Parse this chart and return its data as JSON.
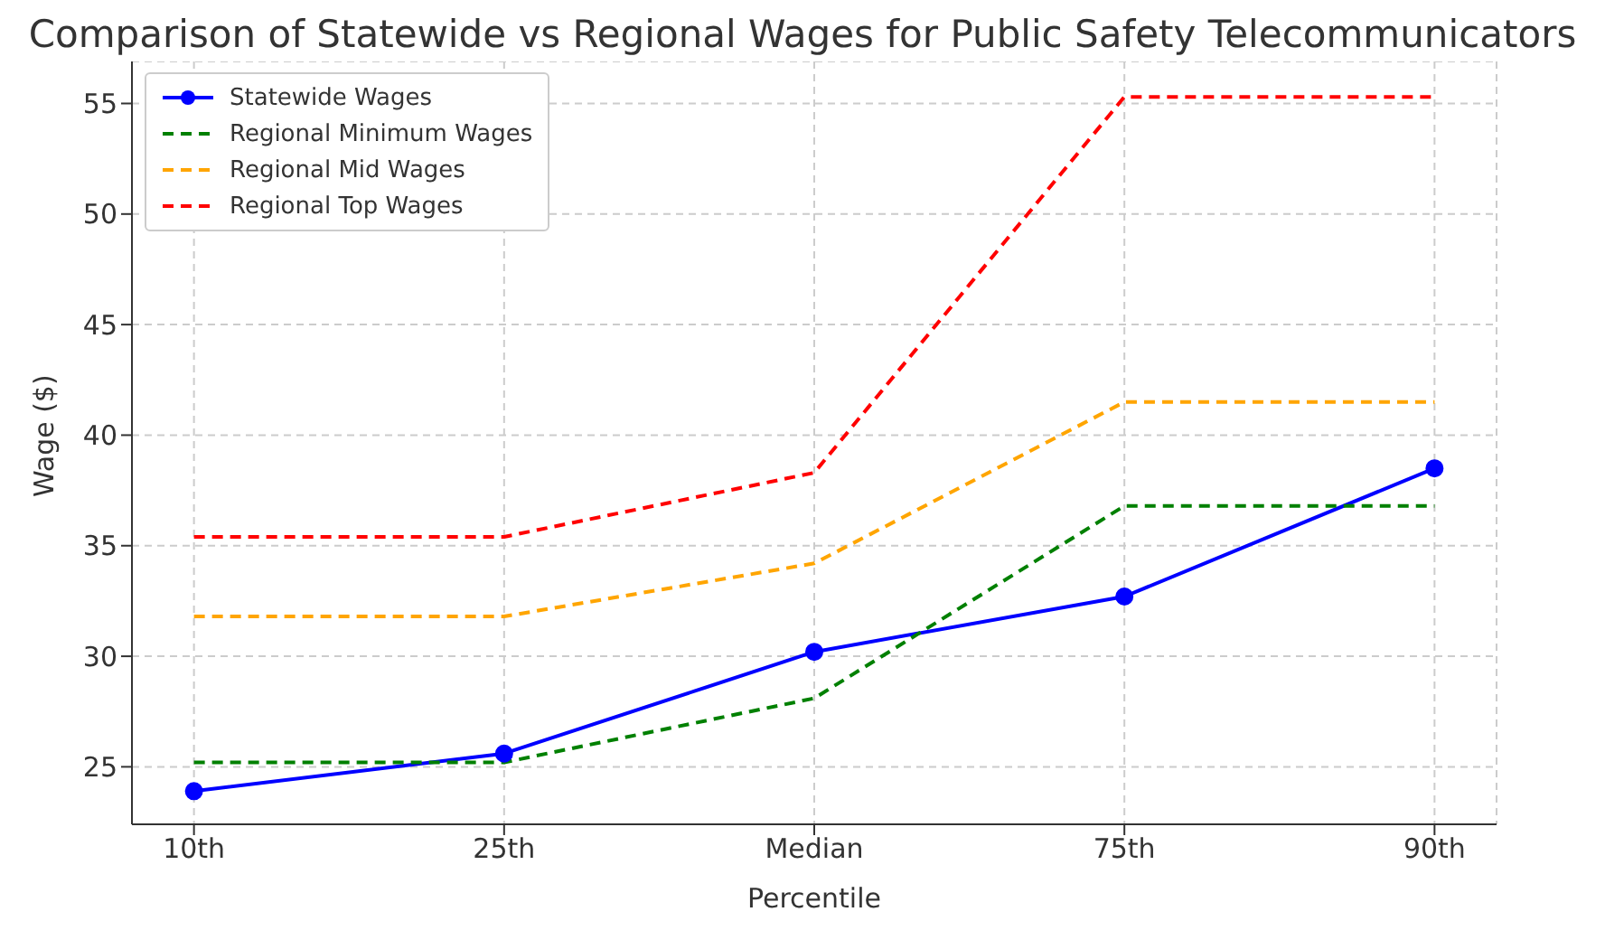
{
  "chart_data": {
    "type": "line",
    "title": "Comparison of Statewide vs Regional Wages for Public Safety Telecommunicators",
    "xlabel": "Percentile",
    "ylabel": "Wage ($)",
    "categories": [
      "10th",
      "25th",
      "Median",
      "75th",
      "90th"
    ],
    "series": [
      {
        "name": "Statewide Wages",
        "color": "#0000ff",
        "values": [
          23.9,
          25.6,
          30.2,
          32.7,
          38.5
        ],
        "marker": "circle",
        "line_style": "solid"
      },
      {
        "name": "Regional Minimum Wages",
        "color": "#008000",
        "values": [
          25.2,
          25.2,
          28.1,
          36.8,
          36.8
        ],
        "marker": "none",
        "line_style": "dashed"
      },
      {
        "name": "Regional Mid Wages",
        "color": "#ffa500",
        "values": [
          31.8,
          31.8,
          34.2,
          41.5,
          41.5
        ],
        "marker": "none",
        "line_style": "dashed"
      },
      {
        "name": "Regional Top Wages",
        "color": "#ff0000",
        "values": [
          35.4,
          35.4,
          38.3,
          55.3,
          55.3
        ],
        "marker": "none",
        "line_style": "dashed"
      }
    ],
    "ylim": [
      22.4,
      56.9
    ],
    "yticks": [
      25,
      30,
      35,
      40,
      45,
      50,
      55
    ],
    "grid": true,
    "legend": "top left"
  }
}
